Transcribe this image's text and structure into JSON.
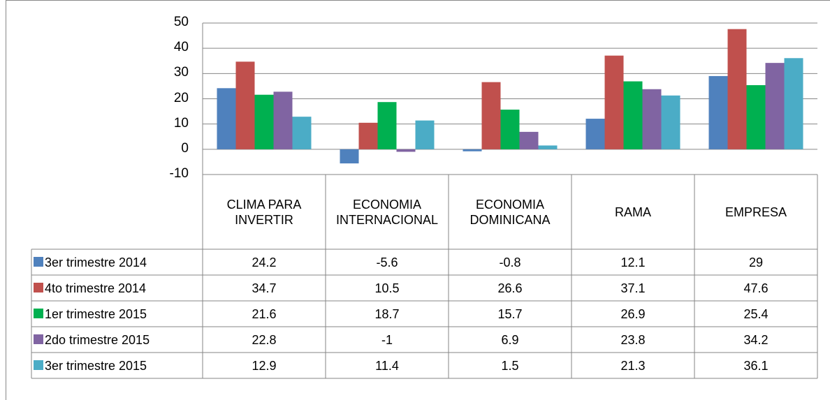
{
  "chart_data": {
    "type": "bar",
    "categories": [
      "CLIMA PARA INVERTIR",
      "ECONOMIA INTERNACIONAL",
      "ECONOMIA DOMINICANA",
      "RAMA",
      "EMPRESA"
    ],
    "series": [
      {
        "name": "3er trimestre 2014",
        "color": "#4f81bd",
        "values": [
          24.2,
          -5.6,
          -0.8,
          12.1,
          29
        ]
      },
      {
        "name": "4to trimestre 2014",
        "color": "#c0504d",
        "values": [
          34.7,
          10.5,
          26.6,
          37.1,
          47.6
        ]
      },
      {
        "name": "1er trimestre 2015",
        "color": "#00b050",
        "values": [
          21.6,
          18.7,
          15.7,
          26.9,
          25.4
        ]
      },
      {
        "name": "2do trimestre 2015",
        "color": "#8064a2",
        "values": [
          22.8,
          -1,
          6.9,
          23.8,
          34.2
        ]
      },
      {
        "name": "3er trimestre 2015",
        "color": "#4bacc6",
        "values": [
          12.9,
          11.4,
          1.5,
          21.3,
          36.1
        ]
      }
    ],
    "ylim": [
      -10,
      50
    ],
    "yticks": [
      -10,
      0,
      10,
      20,
      30,
      40,
      50
    ],
    "grid": true
  }
}
